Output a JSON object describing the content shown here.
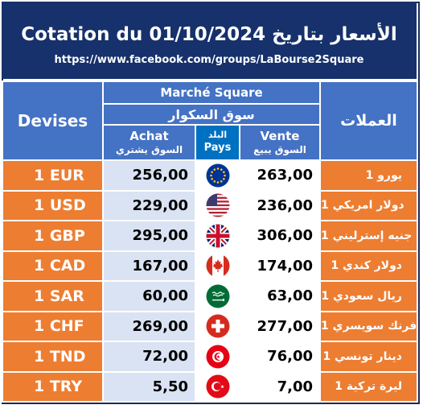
{
  "header": {
    "title": "Cotation du 01/10/2024 الأسعار بتاريخ",
    "url": "https://www.facebook.com/groups/LaBourse2Square"
  },
  "table": {
    "col_devises": "Devises",
    "col_currencies_ar": "العملات",
    "market_fr": "Marché Square",
    "market_ar": "سوق السكوار",
    "achat_fr": "Achat",
    "achat_ar": "السوق يشتري",
    "pays_ar": "البلد",
    "pays_fr": "Pays",
    "vente_fr": "Vente",
    "vente_ar": "السوق يبيع",
    "rows": [
      {
        "code": "1 EUR",
        "achat": "256,00",
        "vente": "263,00",
        "name_ar": "1 يورو",
        "flag": "eu-flag-icon"
      },
      {
        "code": "1 USD",
        "achat": "229,00",
        "vente": "236,00",
        "name_ar": "1 دولار امريكي",
        "flag": "us-flag-icon"
      },
      {
        "code": "1 GBP",
        "achat": "295,00",
        "vente": "306,00",
        "name_ar": "1 جنيه إسترليني",
        "flag": "uk-flag-icon"
      },
      {
        "code": "1 CAD",
        "achat": "167,00",
        "vente": "174,00",
        "name_ar": "1 دولار كندي",
        "flag": "canada-flag-icon"
      },
      {
        "code": "1 SAR",
        "achat": "60,00",
        "vente": "63,00",
        "name_ar": "1 ريال سعودي",
        "flag": "saudi-flag-icon"
      },
      {
        "code": "1 CHF",
        "achat": "269,00",
        "vente": "277,00",
        "name_ar": "1 فرنك سويسري",
        "flag": "swiss-flag-icon"
      },
      {
        "code": "1 TND",
        "achat": "72,00",
        "vente": "76,00",
        "name_ar": "1 دينار تونسي",
        "flag": "tunisia-flag-icon"
      },
      {
        "code": "1 TRY",
        "achat": "5,50",
        "vente": "7,00",
        "name_ar": "1 ليرة تركية",
        "flag": "turkey-flag-icon"
      }
    ]
  },
  "colors": {
    "header_bg": "#16316b",
    "column_header_bg": "#4472c4",
    "pays_bg": "#0070c0",
    "currency_bg": "#ed7d31",
    "value_bg": "#dae3f3"
  }
}
